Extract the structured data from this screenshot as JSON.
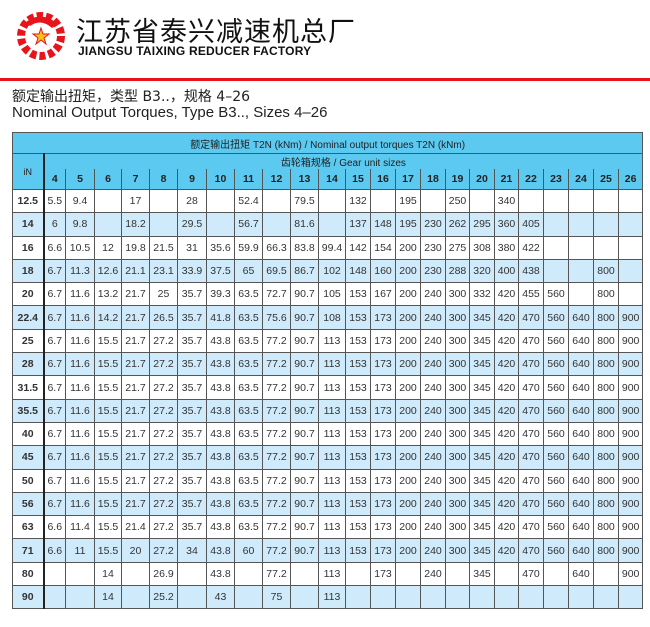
{
  "header": {
    "company_cn": "江苏省泰兴减速机总厂",
    "company_en": "JIANGSU TAIXING REDUCER FACTORY",
    "brand_color": "#e8141b"
  },
  "document": {
    "title_cn": "额定输出扭矩，类型 B3..，规格 4–26",
    "title_en": "Nominal Output Torques, Type B3.., Sizes 4–26"
  },
  "table": {
    "caption": "额定输出扭矩 T2N (kNm) / Nominal output torques T2N (kNm)",
    "subcaption": "齿轮箱规格 / Gear unit sizes",
    "ratio_header": "iN",
    "header_color": "#5cc9f0",
    "stripe_color": "#cfeafa",
    "sizes": [
      "4",
      "5",
      "6",
      "7",
      "8",
      "9",
      "10",
      "11",
      "12",
      "13",
      "14",
      "15",
      "16",
      "17",
      "18",
      "19",
      "20",
      "21",
      "22",
      "23",
      "24",
      "25",
      "26"
    ],
    "rows": [
      {
        "i": "12.5",
        "v": [
          "5.5",
          "9.4",
          "",
          "17",
          "",
          "28",
          "",
          "52.4",
          "",
          "79.5",
          "",
          "132",
          "",
          "195",
          "",
          "250",
          "",
          "340",
          "",
          "",
          "",
          "",
          ""
        ]
      },
      {
        "i": "14",
        "v": [
          "6",
          "9.8",
          "",
          "18.2",
          "",
          "29.5",
          "",
          "56.7",
          "",
          "81.6",
          "",
          "137",
          "148",
          "195",
          "230",
          "262",
          "295",
          "360",
          "405",
          "",
          "",
          "",
          ""
        ]
      },
      {
        "i": "16",
        "v": [
          "6.6",
          "10.5",
          "12",
          "19.8",
          "21.5",
          "31",
          "35.6",
          "59.9",
          "66.3",
          "83.8",
          "99.4",
          "142",
          "154",
          "200",
          "230",
          "275",
          "308",
          "380",
          "422",
          "",
          "",
          "",
          ""
        ]
      },
      {
        "i": "18",
        "v": [
          "6.7",
          "11.3",
          "12.6",
          "21.1",
          "23.1",
          "33.9",
          "37.5",
          "65",
          "69.5",
          "86.7",
          "102",
          "148",
          "160",
          "200",
          "230",
          "288",
          "320",
          "400",
          "438",
          "",
          "",
          "800",
          ""
        ]
      },
      {
        "i": "20",
        "v": [
          "6.7",
          "11.6",
          "13.2",
          "21.7",
          "25",
          "35.7",
          "39.3",
          "63.5",
          "72.7",
          "90.7",
          "105",
          "153",
          "167",
          "200",
          "240",
          "300",
          "332",
          "420",
          "455",
          "560",
          "",
          "800",
          ""
        ]
      },
      {
        "i": "22.4",
        "v": [
          "6.7",
          "11.6",
          "14.2",
          "21.7",
          "26.5",
          "35.7",
          "41.8",
          "63.5",
          "75.6",
          "90.7",
          "108",
          "153",
          "173",
          "200",
          "240",
          "300",
          "345",
          "420",
          "470",
          "560",
          "640",
          "800",
          "900"
        ]
      },
      {
        "i": "25",
        "v": [
          "6.7",
          "11.6",
          "15.5",
          "21.7",
          "27.2",
          "35.7",
          "43.8",
          "63.5",
          "77.2",
          "90.7",
          "113",
          "153",
          "173",
          "200",
          "240",
          "300",
          "345",
          "420",
          "470",
          "560",
          "640",
          "800",
          "900"
        ]
      },
      {
        "i": "28",
        "v": [
          "6.7",
          "11.6",
          "15.5",
          "21.7",
          "27.2",
          "35.7",
          "43.8",
          "63.5",
          "77.2",
          "90.7",
          "113",
          "153",
          "173",
          "200",
          "240",
          "300",
          "345",
          "420",
          "470",
          "560",
          "640",
          "800",
          "900"
        ]
      },
      {
        "i": "31.5",
        "v": [
          "6.7",
          "11.6",
          "15.5",
          "21.7",
          "27.2",
          "35.7",
          "43.8",
          "63.5",
          "77.2",
          "90.7",
          "113",
          "153",
          "173",
          "200",
          "240",
          "300",
          "345",
          "420",
          "470",
          "560",
          "640",
          "800",
          "900"
        ]
      },
      {
        "i": "35.5",
        "v": [
          "6.7",
          "11.6",
          "15.5",
          "21.7",
          "27.2",
          "35.7",
          "43.8",
          "63.5",
          "77.2",
          "90.7",
          "113",
          "153",
          "173",
          "200",
          "240",
          "300",
          "345",
          "420",
          "470",
          "560",
          "640",
          "800",
          "900"
        ]
      },
      {
        "i": "40",
        "v": [
          "6.7",
          "11.6",
          "15.5",
          "21.7",
          "27.2",
          "35.7",
          "43.8",
          "63.5",
          "77.2",
          "90.7",
          "113",
          "153",
          "173",
          "200",
          "240",
          "300",
          "345",
          "420",
          "470",
          "560",
          "640",
          "800",
          "900"
        ]
      },
      {
        "i": "45",
        "v": [
          "6.7",
          "11.6",
          "15.5",
          "21.7",
          "27.2",
          "35.7",
          "43.8",
          "63.5",
          "77.2",
          "90.7",
          "113",
          "153",
          "173",
          "200",
          "240",
          "300",
          "345",
          "420",
          "470",
          "560",
          "640",
          "800",
          "900"
        ]
      },
      {
        "i": "50",
        "v": [
          "6.7",
          "11.6",
          "15.5",
          "21.7",
          "27.2",
          "35.7",
          "43.8",
          "63.5",
          "77.2",
          "90.7",
          "113",
          "153",
          "173",
          "200",
          "240",
          "300",
          "345",
          "420",
          "470",
          "560",
          "640",
          "800",
          "900"
        ]
      },
      {
        "i": "56",
        "v": [
          "6.7",
          "11.6",
          "15.5",
          "21.7",
          "27.2",
          "35.7",
          "43.8",
          "63.5",
          "77.2",
          "90.7",
          "113",
          "153",
          "173",
          "200",
          "240",
          "300",
          "345",
          "420",
          "470",
          "560",
          "640",
          "800",
          "900"
        ]
      },
      {
        "i": "63",
        "v": [
          "6.6",
          "11.4",
          "15.5",
          "21.4",
          "27.2",
          "35.7",
          "43.8",
          "63.5",
          "77.2",
          "90.7",
          "113",
          "153",
          "173",
          "200",
          "240",
          "300",
          "345",
          "420",
          "470",
          "560",
          "640",
          "800",
          "900"
        ]
      },
      {
        "i": "71",
        "v": [
          "6.6",
          "11",
          "15.5",
          "20",
          "27.2",
          "34",
          "43.8",
          "60",
          "77.2",
          "90.7",
          "113",
          "153",
          "173",
          "200",
          "240",
          "300",
          "345",
          "420",
          "470",
          "560",
          "640",
          "800",
          "900"
        ]
      },
      {
        "i": "80",
        "v": [
          "",
          "",
          "14",
          "",
          "26.9",
          "",
          "43.8",
          "",
          "77.2",
          "",
          "113",
          "",
          "173",
          "",
          "240",
          "",
          "345",
          "",
          "470",
          "",
          "640",
          "",
          "900"
        ]
      },
      {
        "i": "90",
        "v": [
          "",
          "",
          "14",
          "",
          "25.2",
          "",
          "43",
          "",
          "75",
          "",
          "113",
          "",
          "",
          "",
          "",
          "",
          "",
          "",
          "",
          "",
          "",
          "",
          ""
        ]
      }
    ]
  }
}
